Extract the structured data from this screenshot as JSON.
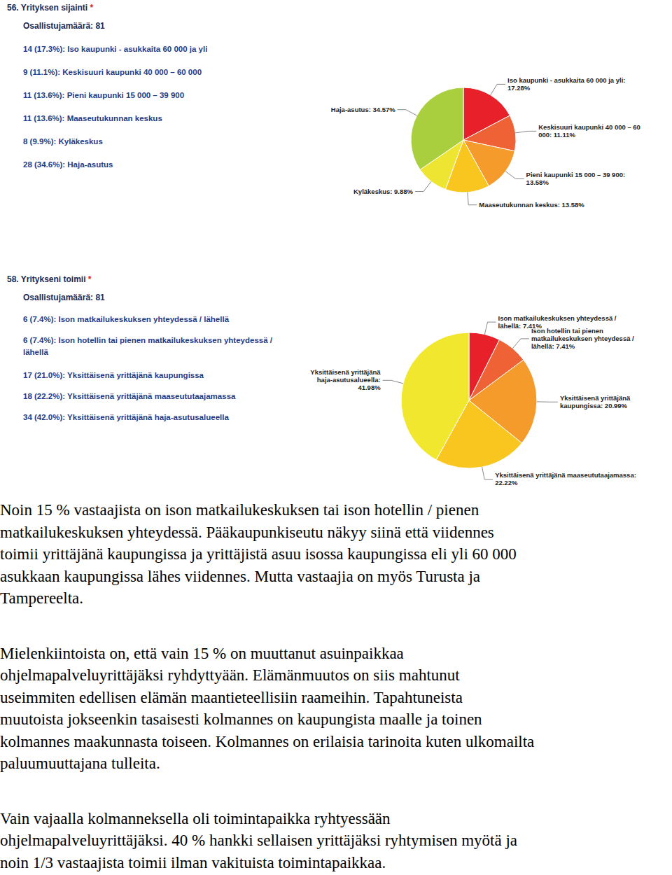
{
  "chart_data": [
    {
      "type": "pie",
      "title": "56. Yrityksen sijainti *",
      "subtitle": "Osallistujamäärä: 81",
      "categories": [
        "Iso kaupunki - asukkaita 60 000 ja yli",
        "Keskisuuri kaupunki 40 000 – 60 000",
        "Pieni kaupunki 15 000 – 39 900",
        "Maaseutukunnan keskus",
        "Kyläkeskus",
        "Haja-asutus"
      ],
      "values": [
        17.28,
        11.11,
        13.58,
        13.58,
        9.88,
        34.57
      ],
      "value_labels": [
        "Iso kaupunki - asukkaita 60 000 ja yli: 17.28%",
        "Keskisuuri kaupunki 40 000 – 60 000: 11.11%",
        "Pieni kaupunki 15 000 – 39 900: 13.58%",
        "Maaseutukunnan keskus: 13.58%",
        "Kyläkeskus: 9.88%",
        "Haja-asutus: 34.57%"
      ],
      "list_items": [
        "14 (17.3%): Iso kaupunki - asukkaita 60 000 ja yli",
        "9 (11.1%): Keskisuuri kaupunki 40 000 – 60 000",
        "11 (13.6%): Pieni kaupunki 15 000 – 39 900",
        "11 (13.6%): Maaseutukunnan keskus",
        "8 (9.9%): Kyläkeskus",
        "28 (34.6%): Haja-asutus"
      ],
      "colors": [
        "#e8202a",
        "#ef6236",
        "#f59b2b",
        "#f8c61f",
        "#eee532",
        "#a9cf3e"
      ],
      "data_labels": true
    },
    {
      "type": "pie",
      "title": "58. Yritykseni toimii *",
      "subtitle": "Osallistujamäärä: 81",
      "categories": [
        "Ison matkailukeskuksen yhteydessä / lähellä",
        "Ison hotellin tai pienen matkailukeskuksen yhteydessä / lähellä",
        "Yksittäisenä yrittäjänä kaupungissa",
        "Yksittäisenä yrittäjänä maaseututaajamassa",
        "Yksittäisenä yrittäjänä haja-asutusalueella"
      ],
      "values": [
        7.41,
        7.41,
        20.99,
        22.22,
        41.98
      ],
      "value_labels": [
        "Ison matkailukeskuksen yhteydessä / lähellä: 7.41%",
        "Ison hotellin tai pienen matkailukeskuksen yhteydessä / lähellä: 7.41%",
        "Yksittäisenä yrittäjänä kaupungissa: 20.99%",
        "Yksittäisenä yrittäjänä maaseututaajamassa: 22.22%",
        "Yksittäisenä yrittäjänä haja-asutusalueella: 41.98%"
      ],
      "list_items": [
        "6 (7.4%): Ison matkailukeskuksen yhteydessä / lähellä",
        "6 (7.4%): Ison hotellin tai pienen matkailukeskuksen yhteydessä / lähellä",
        "17 (21.0%): Yksittäisenä yrittäjänä kaupungissa",
        "18 (22.2%): Yksittäisenä yrittäjänä maaseututaajamassa",
        "34 (42.0%): Yksittäisenä yrittäjänä haja-asutusalueella"
      ],
      "colors": [
        "#e8202a",
        "#ef6236",
        "#f59b2b",
        "#f8c61f",
        "#f0e72e"
      ],
      "data_labels": true
    }
  ],
  "paragraphs": [
    [
      "Noin 15 % vastaajista on ison matkailukeskuksen tai ison hotellin / pienen",
      "matkailukeskuksen yhteydessä. Pääkaupunkiseutu näkyy siinä että viidennes",
      "toimii yrittäjänä kaupungissa ja yrittäjistä asuu isossa kaupungissa eli yli 60 000",
      "asukkaan kaupungissa lähes viidennes. Mutta vastaajia on myös Turusta ja",
      "Tampereelta."
    ],
    [
      "Mielenkiintoista on, että vain 15 % on muuttanut asuinpaikkaa",
      "ohjelmapalveluyrittäjäksi ryhdyttyään. Elämänmuutos on siis mahtunut",
      "useimmiten edellisen elämän maantieteellisiin raameihin. Tapahtuneista",
      "muutoista jokseenkin tasaisesti kolmannes on kaupungista maalle ja toinen",
      "kolmannes maakunnasta toiseen. Kolmannes on erilaisia tarinoita kuten ulkomailta",
      "paluumuuttajana tulleita."
    ],
    [
      "Vain vajaalla kolmanneksella oli toimintapaikka ryhtyessään",
      "ohjelmapalveluyrittäjäksi. 40 % hankki sellaisen yrittäjäksi ryhtymisen myötä ja",
      "noin 1/3 vastaajista toimii ilman vakituista toimintapaikkaa."
    ]
  ]
}
